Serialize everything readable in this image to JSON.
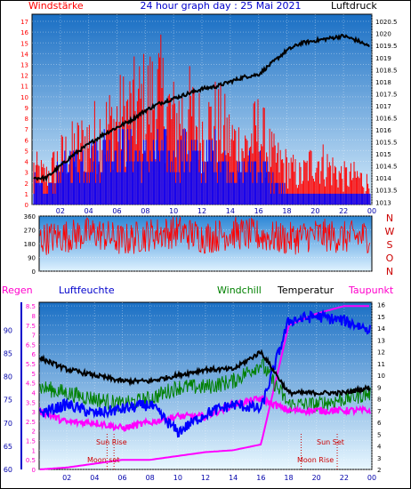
{
  "header": {
    "left": "Windstärke",
    "center": "24 hour graph day : 25 Mai 2021",
    "right": "Luftdruck"
  },
  "colors": {
    "wind": "#ff0000",
    "gust": "#0000ff",
    "pressure": "#000000",
    "humidity": "#0000ff",
    "temperature": "#000000",
    "windchill": "#008000",
    "dewpoint": "#ff00ff",
    "rain": "#ff00ff"
  },
  "legend_lower": {
    "regen": "Regen",
    "luftfeuchte": "Luftfeuchte",
    "windchill": "Windchill",
    "temperatur": "Temperatur",
    "taupunkt": "Taupunkt"
  },
  "compass": [
    "N",
    "W",
    "S",
    "O",
    "N"
  ],
  "annotations": {
    "sun_rise": "Sun Rise",
    "sun_set": "Sun Set",
    "moon_set": "Moon set",
    "moon_rise": "Moon Rise"
  },
  "chart_data": [
    {
      "type": "line",
      "title": "24 hour graph day : 25 Mai 2021",
      "x_ticks": [
        "02",
        "04",
        "06",
        "08",
        "10",
        "12",
        "14",
        "16",
        "18",
        "20",
        "22",
        "00"
      ],
      "y_left_label": "Windstärke",
      "y_left_ticks": [
        0,
        1,
        2,
        3,
        4,
        5,
        6,
        7,
        8,
        9,
        10,
        11,
        12,
        13,
        14,
        15,
        16,
        17
      ],
      "y_right_label": "Luftdruck",
      "y_right_ticks": [
        1013,
        1013.5,
        1014,
        1014.5,
        1015,
        1015.5,
        1016,
        1016.5,
        1017,
        1017.5,
        1018,
        1018.5,
        1019,
        1019.5,
        1020,
        1020.5
      ],
      "series": [
        {
          "name": "Windstärke",
          "x": [
            0,
            1,
            2,
            3,
            4,
            5,
            6,
            7,
            8,
            9,
            10,
            11,
            12,
            13,
            14,
            15,
            16,
            17,
            18,
            19,
            20,
            21,
            22,
            23,
            24
          ],
          "values": [
            4,
            3,
            5,
            6,
            7,
            8,
            9,
            10,
            11,
            12,
            9,
            10,
            8,
            9,
            7,
            6,
            8,
            5,
            4,
            3,
            5,
            4,
            3,
            3,
            2
          ]
        },
        {
          "name": "Böen",
          "x": [
            0,
            1,
            2,
            3,
            4,
            5,
            6,
            7,
            8,
            9,
            10,
            11,
            12,
            13,
            14,
            15,
            16,
            17,
            18,
            19,
            20,
            21,
            22,
            23,
            24
          ],
          "values": [
            2,
            1,
            3,
            4,
            4,
            5,
            5,
            5,
            4,
            5,
            4,
            5,
            4,
            5,
            3,
            3,
            4,
            2,
            1,
            1,
            1,
            1,
            1,
            1,
            1
          ]
        },
        {
          "name": "Luftdruck",
          "x": [
            0,
            1,
            2,
            3,
            4,
            5,
            6,
            7,
            8,
            9,
            10,
            11,
            12,
            13,
            14,
            15,
            16,
            17,
            18,
            19,
            20,
            21,
            22,
            23,
            24
          ],
          "values": [
            1014.0,
            1014.0,
            1014.5,
            1015.0,
            1015.4,
            1015.8,
            1016.1,
            1016.4,
            1016.8,
            1017.1,
            1017.3,
            1017.5,
            1017.7,
            1017.8,
            1018.0,
            1018.2,
            1018.3,
            1018.8,
            1019.3,
            1019.6,
            1019.7,
            1019.8,
            1019.9,
            1019.7,
            1019.4
          ]
        }
      ]
    },
    {
      "type": "line",
      "title": "",
      "y_ticks": [
        0,
        90,
        180,
        270,
        360
      ],
      "series": [
        {
          "name": "Windrichtung",
          "x": [
            0,
            2,
            4,
            6,
            8,
            10,
            12,
            14,
            16,
            18,
            20,
            22,
            24
          ],
          "values": [
            210,
            230,
            250,
            200,
            240,
            260,
            220,
            250,
            230,
            210,
            240,
            220,
            230
          ]
        }
      ]
    },
    {
      "type": "line",
      "title": "",
      "y_left_outer_ticks": [
        0,
        0.5,
        1,
        1.5,
        2,
        2.5,
        3,
        3.5,
        4,
        4.5,
        5,
        5.5,
        6,
        6.5,
        7,
        7.5,
        8,
        8.5
      ],
      "y_left_inner_ticks": [
        60,
        65,
        70,
        75,
        80,
        85,
        90
      ],
      "y_right_ticks": [
        2,
        3,
        4,
        5,
        6,
        7,
        8,
        9,
        10,
        11,
        12,
        13,
        14,
        15,
        16
      ],
      "x_ticks": [
        "02",
        "04",
        "06",
        "08",
        "10",
        "12",
        "14",
        "16",
        "18",
        "20",
        "22",
        "00"
      ],
      "series": [
        {
          "name": "Regen",
          "x": [
            0,
            2,
            4,
            6,
            8,
            10,
            12,
            14,
            16,
            18,
            20,
            22,
            24
          ],
          "values": [
            0,
            0.1,
            0.3,
            0.5,
            0.5,
            0.7,
            0.9,
            1.0,
            1.3,
            7.5,
            8.1,
            8.5,
            8.5
          ]
        },
        {
          "name": "Luftfeuchte",
          "x": [
            0,
            2,
            4,
            6,
            8,
            10,
            12,
            14,
            16,
            18,
            20,
            22,
            24
          ],
          "values": [
            72,
            74,
            72,
            73,
            74,
            68,
            72,
            74,
            73,
            92,
            93,
            92,
            90
          ]
        },
        {
          "name": "Windchill",
          "x": [
            0,
            2,
            4,
            6,
            8,
            10,
            12,
            14,
            16,
            18,
            20,
            22,
            24
          ],
          "values": [
            9,
            8.5,
            8,
            7.5,
            8,
            9,
            9,
            9.5,
            11,
            7.5,
            7.5,
            8,
            8.5
          ]
        },
        {
          "name": "Temperatur",
          "x": [
            0,
            2,
            4,
            6,
            8,
            10,
            12,
            14,
            16,
            18,
            20,
            22,
            24
          ],
          "values": [
            11.5,
            10.5,
            10,
            9.5,
            9.5,
            10,
            10.5,
            10.5,
            12,
            8.5,
            8.5,
            8.5,
            9.0
          ]
        },
        {
          "name": "Taupunkt",
          "x": [
            0,
            2,
            4,
            6,
            8,
            10,
            12,
            14,
            16,
            18,
            20,
            22,
            24
          ],
          "values": [
            7,
            6,
            6,
            5.5,
            6,
            6.5,
            6.5,
            7.5,
            8,
            7,
            7,
            7,
            7
          ]
        }
      ]
    }
  ]
}
